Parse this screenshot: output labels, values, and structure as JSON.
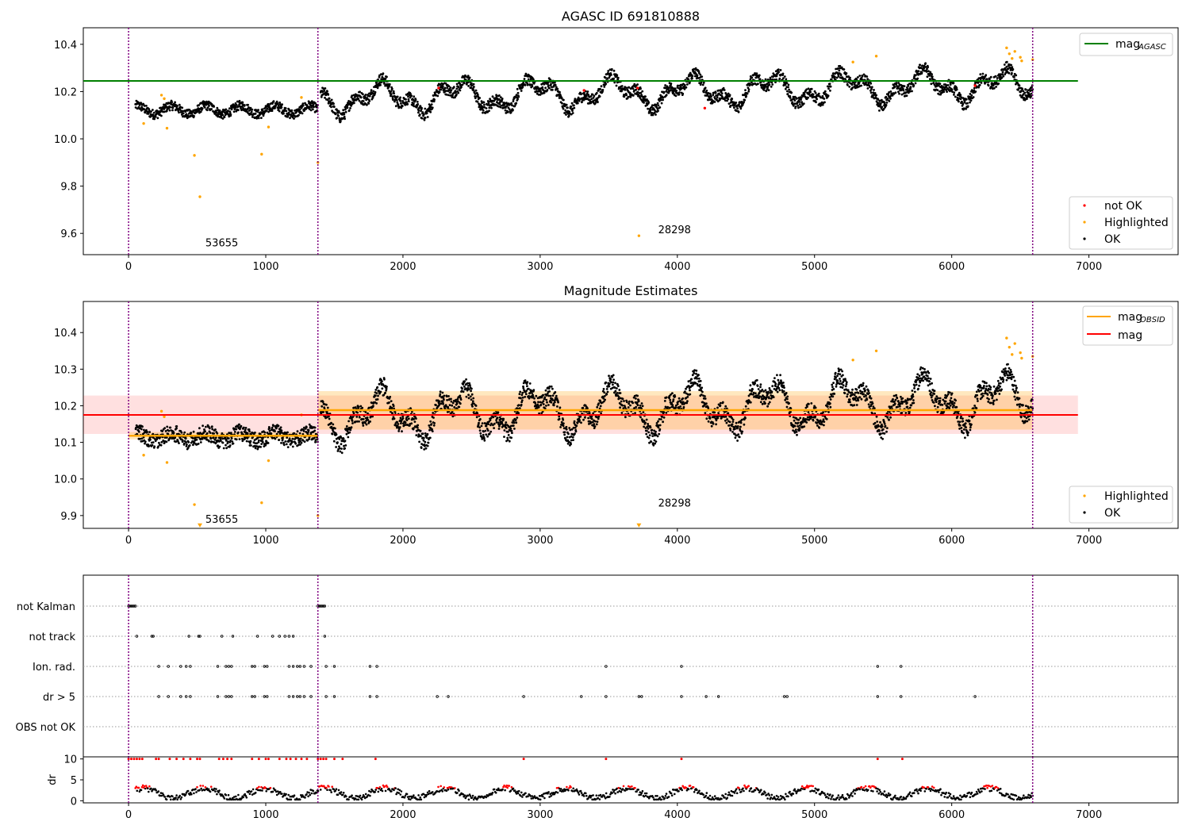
{
  "chart_data": [
    {
      "type": "scatter",
      "title": "AGASC ID 691810888",
      "xlim": [
        -330,
        7650
      ],
      "ylim": [
        9.51,
        10.47
      ],
      "xticks": [
        0,
        1000,
        2000,
        3000,
        4000,
        5000,
        6000,
        7000
      ],
      "yticks": [
        9.6,
        9.8,
        10.0,
        10.2,
        10.4
      ],
      "yticks_labels": [
        "9.6",
        "9.8",
        "10.0",
        "10.2",
        "10.4"
      ],
      "vlines": [
        0,
        1380,
        6590
      ],
      "hline": {
        "name": "mag",
        "name_sub": "AGASC",
        "value": 10.245,
        "x": [
          -330,
          6920
        ],
        "color": "#008000"
      },
      "legend_lines": [
        {
          "name": "mag",
          "name_sub": "AGASC",
          "color": "#008000"
        }
      ],
      "legend_points": [
        {
          "name": "not OK",
          "color": "#ff0000"
        },
        {
          "name": "Highlighted",
          "color": "#ffa500"
        },
        {
          "name": "OK",
          "color": "#000000"
        }
      ],
      "annotations": [
        {
          "text": "53655",
          "x": 560,
          "y": 9.545
        },
        {
          "text": "28298",
          "x": 3860,
          "y": 9.6
        }
      ],
      "series": [
        {
          "name": "OK",
          "color": "#000000",
          "segments": [
            {
              "x": [
                50,
                1380
              ],
              "y": [
                10.085,
                10.16
              ]
            },
            {
              "x": [
                1400,
                6590
              ],
              "y": [
                10.08,
                10.3
              ]
            }
          ]
        },
        {
          "name": "Highlighted",
          "color": "#ffa500",
          "x": [
            110,
            240,
            260,
            280,
            480,
            520,
            970,
            1020,
            1260,
            1380,
            3720,
            5280,
            5450,
            6400,
            6420,
            6440,
            6460,
            6500,
            6510,
            6590
          ],
          "y": [
            10.065,
            10.185,
            10.17,
            10.045,
            9.93,
            9.755,
            9.935,
            10.05,
            10.175,
            9.9,
            9.59,
            10.325,
            10.35,
            10.385,
            10.36,
            10.34,
            10.37,
            10.345,
            10.33,
            10.335
          ]
        },
        {
          "name": "not OK",
          "color": "#ff0000",
          "x": [
            2260,
            3320,
            3710,
            4200,
            6170
          ],
          "y": [
            10.215,
            10.205,
            10.215,
            10.13,
            10.225
          ]
        }
      ]
    },
    {
      "type": "scatter",
      "title": "Magnitude Estimates",
      "xlim": [
        -330,
        7650
      ],
      "ylim": [
        9.865,
        10.485
      ],
      "xticks": [
        0,
        1000,
        2000,
        3000,
        4000,
        5000,
        6000,
        7000
      ],
      "yticks": [
        9.9,
        10.0,
        10.1,
        10.2,
        10.3,
        10.4
      ],
      "yticks_labels": [
        "9.9",
        "10.0",
        "10.1",
        "10.2",
        "10.3",
        "10.4"
      ],
      "vlines": [
        0,
        1380,
        6590
      ],
      "mag": {
        "value": 10.175,
        "band": [
          10.123,
          10.228
        ],
        "x": [
          -330,
          6920
        ],
        "color": "#ff0000"
      },
      "mag_obsid": [
        {
          "x": [
            0,
            1380
          ],
          "value": 10.118,
          "band": [
            10.108,
            10.128
          ]
        },
        {
          "x": [
            1380,
            6590
          ],
          "value": 10.188,
          "band": [
            10.135,
            10.24
          ]
        }
      ],
      "legend_lines": [
        {
          "name": "mag",
          "name_sub": "OBSID",
          "color": "#ffa500"
        },
        {
          "name": "mag",
          "name_sub": "",
          "color": "#ff0000"
        }
      ],
      "legend_points": [
        {
          "name": "Highlighted",
          "color": "#ffa500"
        },
        {
          "name": "OK",
          "color": "#000000"
        }
      ],
      "annotations": [
        {
          "text": "53655",
          "x": 560,
          "y": 9.88
        },
        {
          "text": "28298",
          "x": 3860,
          "y": 9.925
        }
      ],
      "markers_down": [
        {
          "x": 520,
          "y": 9.872
        },
        {
          "x": 3720,
          "y": 9.872
        }
      ]
    },
    {
      "type": "scatter",
      "title": "",
      "xlim": [
        -330,
        7650
      ],
      "flags": [
        "not Kalman",
        "not track",
        "Ion. rad.",
        "dr > 5",
        "OBS not OK"
      ],
      "flag_points": {
        "not Kalman": [
          0,
          10,
          20,
          30,
          40,
          50,
          1380,
          1390,
          1400,
          1410,
          1420,
          1430
        ],
        "not track": [
          60,
          170,
          180,
          440,
          510,
          520,
          680,
          760,
          940,
          1050,
          1100,
          1140,
          1170,
          1200,
          1430
        ],
        "Ion. rad.": [
          220,
          290,
          380,
          420,
          450,
          650,
          710,
          730,
          750,
          900,
          920,
          990,
          1010,
          1170,
          1200,
          1230,
          1250,
          1280,
          1330,
          1440,
          1500,
          1760,
          1810,
          3480,
          4030,
          5460,
          5630
        ],
        "dr > 5": [
          220,
          290,
          380,
          420,
          450,
          650,
          710,
          730,
          750,
          900,
          920,
          990,
          1010,
          1170,
          1200,
          1230,
          1250,
          1280,
          1330,
          1440,
          1500,
          1760,
          1810,
          2250,
          2330,
          2880,
          3300,
          3480,
          3720,
          3740,
          4030,
          4210,
          4300,
          4780,
          4800,
          5460,
          5630,
          6170
        ],
        "OBS not OK": []
      },
      "vlines": [
        0,
        1380,
        6590
      ]
    },
    {
      "type": "scatter",
      "title": "",
      "ylabel": "dr",
      "xlim": [
        -330,
        7650
      ],
      "ylim": [
        -0.5,
        10.5
      ],
      "yticks": [
        0,
        5,
        10
      ],
      "yticks_labels": [
        "0",
        "5",
        "10"
      ],
      "xticks": [
        0,
        1000,
        2000,
        3000,
        4000,
        5000,
        6000,
        7000
      ],
      "vlines": [
        0,
        1380,
        6590
      ],
      "series": [
        {
          "name": "dr OK",
          "color": "#000000",
          "range": [
            0.3,
            3.0
          ]
        },
        {
          "name": "dr high",
          "color": "#ff0000",
          "range": [
            3.0,
            5.5
          ]
        },
        {
          "name": "dr clipped",
          "color": "#ff0000",
          "value": 10,
          "x": [
            0,
            20,
            40,
            60,
            80,
            100,
            200,
            220,
            300,
            350,
            400,
            450,
            500,
            520,
            660,
            690,
            720,
            750,
            900,
            950,
            1000,
            1020,
            1100,
            1150,
            1180,
            1220,
            1260,
            1300,
            1380,
            1400,
            1420,
            1440,
            1500,
            1560,
            1800,
            2880,
            3480,
            4030,
            5460,
            5640
          ]
        }
      ]
    }
  ]
}
